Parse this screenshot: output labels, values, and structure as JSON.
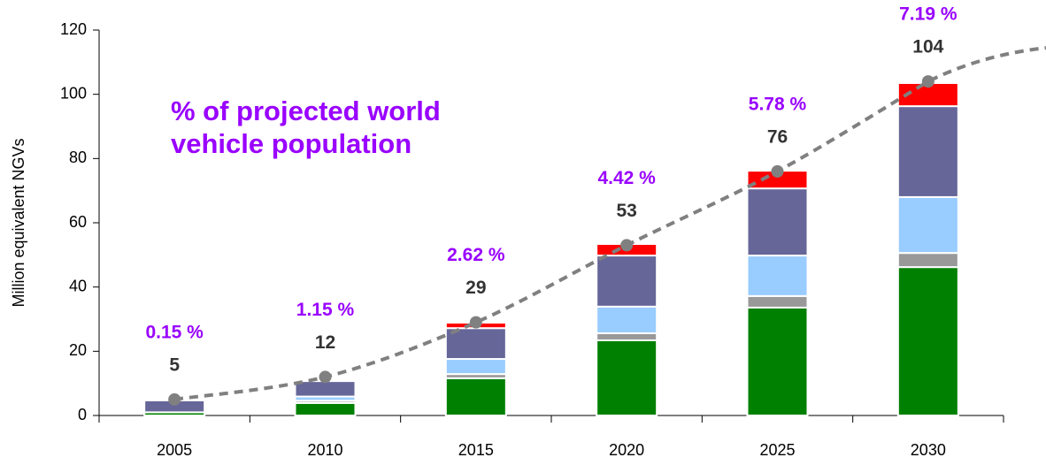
{
  "chart_data": {
    "type": "stacked_bar",
    "y_label": "Million equivalent NGVs",
    "categories": [
      "2005",
      "2010",
      "2015",
      "2020",
      "2025",
      "2030"
    ],
    "series": [
      {
        "color": "#008000",
        "values": [
          1,
          3.9,
          11.6,
          23.4,
          33.6,
          46.2
        ]
      },
      {
        "color": "#999999",
        "values": [
          0,
          0.7,
          1.3,
          2.2,
          3.6,
          4.4
        ]
      },
      {
        "color": "#99ccff",
        "values": [
          0,
          1.3,
          4.7,
          8.3,
          12.6,
          17.4
        ]
      },
      {
        "color": "#666699",
        "values": [
          3.7,
          4.8,
          9.6,
          15.9,
          20.9,
          28.3
        ]
      },
      {
        "color": "#ff0000",
        "values": [
          0,
          0,
          1.7,
          3.6,
          5.5,
          7.2
        ]
      }
    ],
    "totals": {
      "color": "#808080",
      "values": [
        5,
        12,
        29,
        53,
        76,
        104
      ]
    },
    "shares": {
      "values": [
        0.15,
        1.15,
        2.62,
        4.42,
        5.78,
        7.19
      ],
      "value_labels": [
        "0.15 %",
        "1.15 %",
        "2.62 %",
        "4.42 %",
        "5.78 %",
        "7.19 %"
      ]
    },
    "annotation": [
      "% of projected world",
      "vehicle population"
    ],
    "ylim": [
      0,
      120
    ],
    "yticks": [
      0,
      20,
      40,
      60,
      80,
      100,
      120
    ]
  }
}
